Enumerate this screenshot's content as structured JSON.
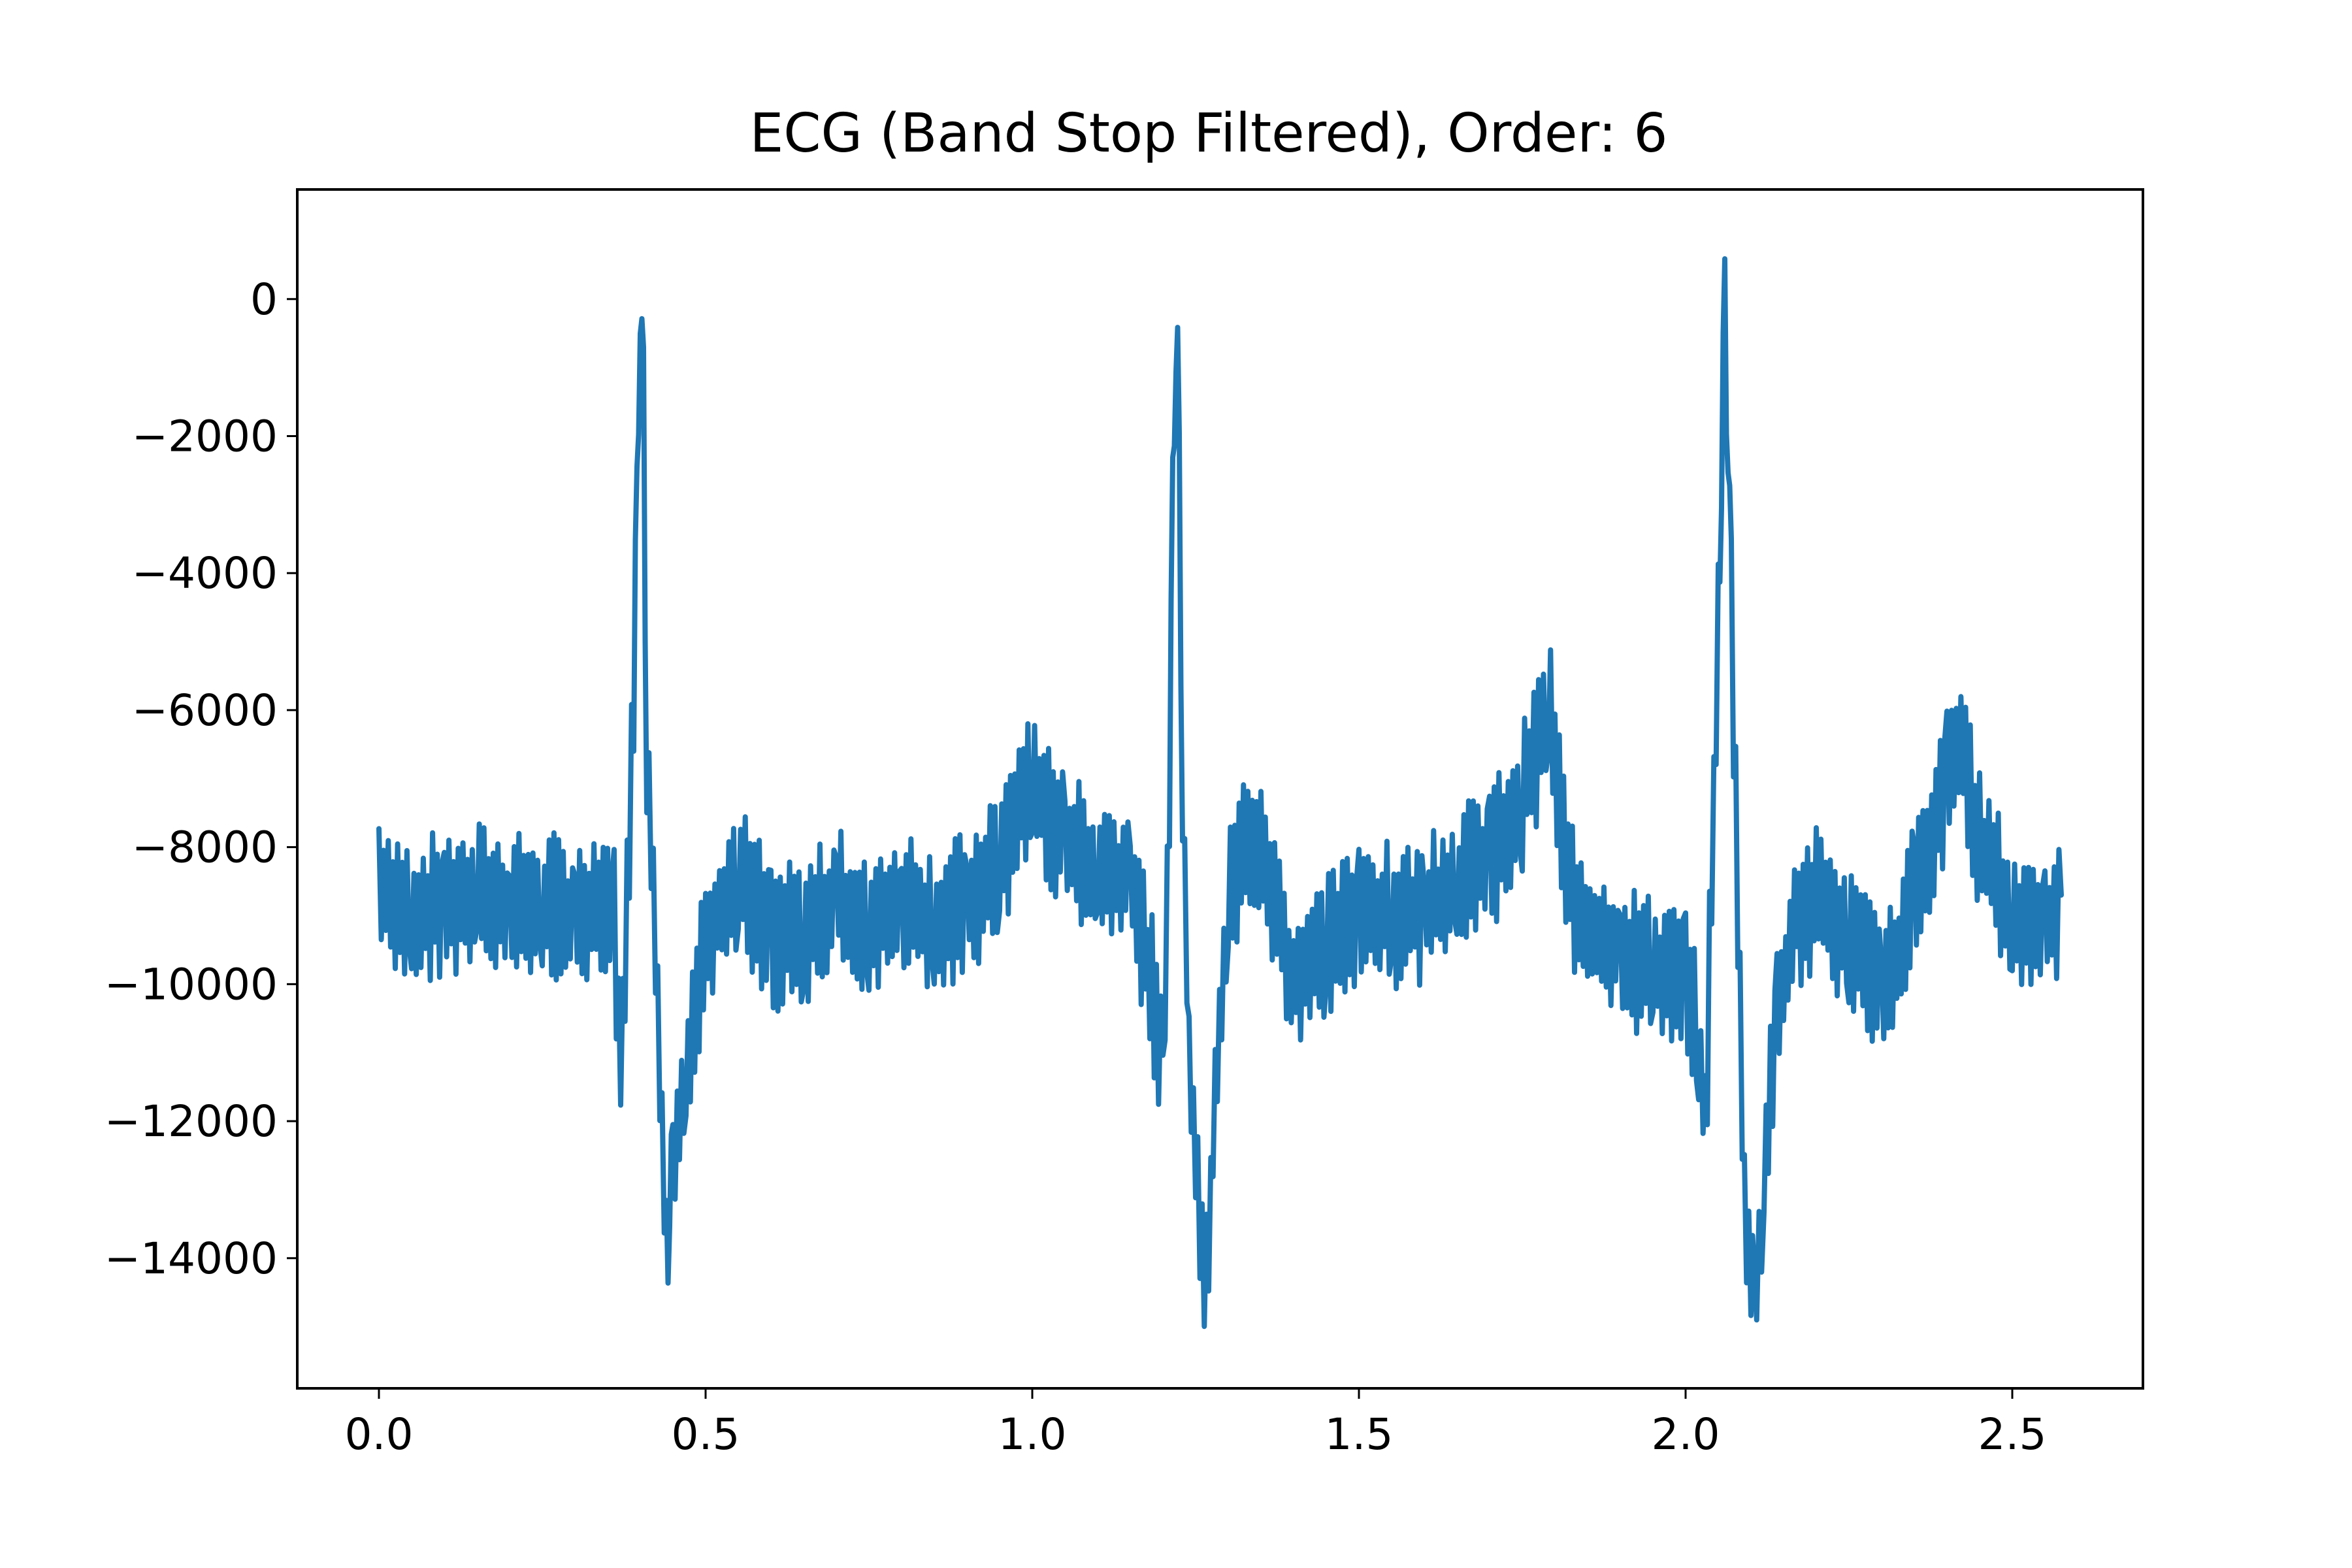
{
  "chart_data": {
    "type": "line",
    "title": "ECG (Band Stop Filtered),  Order: 6",
    "xlabel": "",
    "ylabel": "",
    "xlim": [
      -0.125,
      2.7
    ],
    "ylim": [
      -15900,
      1600
    ],
    "x_ticks": [
      0.0,
      0.5,
      1.0,
      1.5,
      2.0,
      2.5
    ],
    "x_tick_labels": [
      "0.0",
      "0.5",
      "1.0",
      "1.5",
      "2.0",
      "2.5"
    ],
    "y_ticks": [
      0,
      -2000,
      -4000,
      -6000,
      -8000,
      -10000,
      -12000,
      -14000
    ],
    "y_tick_labels": [
      "0",
      "−2000",
      "−4000",
      "−6000",
      "−8000",
      "−10000",
      "−12000",
      "−14000"
    ],
    "grid": false,
    "legend": "none",
    "line_color": "#1f77b4",
    "series": [
      {
        "x": [
          0.0,
          0.05,
          0.1,
          0.15,
          0.2,
          0.25,
          0.3,
          0.34,
          0.36,
          0.37,
          0.38,
          0.39,
          0.395,
          0.4,
          0.405,
          0.41,
          0.42,
          0.43,
          0.44,
          0.445,
          0.45,
          0.47,
          0.5,
          0.55,
          0.6,
          0.65,
          0.7,
          0.75,
          0.8,
          0.85,
          0.9,
          0.95,
          0.98,
          1.0,
          1.05,
          1.1,
          1.15,
          1.18,
          1.2,
          1.21,
          1.215,
          1.22,
          1.225,
          1.23,
          1.24,
          1.25,
          1.26,
          1.27,
          1.28,
          1.3,
          1.33,
          1.36,
          1.4,
          1.45,
          1.5,
          1.55,
          1.6,
          1.65,
          1.7,
          1.75,
          1.775,
          1.79,
          1.82,
          1.85,
          1.9,
          1.95,
          2.0,
          2.02,
          2.03,
          2.04,
          2.05,
          2.055,
          2.06,
          2.065,
          2.07,
          2.08,
          2.09,
          2.1,
          2.105,
          2.12,
          2.14,
          2.17,
          2.2,
          2.25,
          2.3,
          2.33,
          2.35,
          2.38,
          2.4,
          2.425,
          2.45,
          2.5,
          2.55,
          2.575
        ],
        "y": [
          -8500,
          -9000,
          -8800,
          -8700,
          -8900,
          -8800,
          -9000,
          -8700,
          -9000,
          -11300,
          -8800,
          -6000,
          -3000,
          0,
          -1500,
          -6500,
          -8500,
          -11500,
          -13800,
          -13000,
          -12500,
          -11200,
          -9300,
          -8400,
          -9300,
          -9300,
          -8800,
          -9100,
          -8800,
          -9200,
          -8800,
          -8300,
          -7400,
          -7000,
          -8000,
          -8300,
          -8500,
          -9800,
          -11500,
          -7500,
          -3000,
          0,
          -2500,
          -7000,
          -11000,
          -12500,
          -14000,
          -13800,
          -11500,
          -8800,
          -7800,
          -8400,
          -10000,
          -9500,
          -9000,
          -9000,
          -9000,
          -8500,
          -8200,
          -7300,
          -6500,
          -5800,
          -8500,
          -9200,
          -9500,
          -9800,
          -10000,
          -10600,
          -12200,
          -8500,
          -4500,
          -2000,
          0,
          -2000,
          -4500,
          -9000,
          -13000,
          -14300,
          -15000,
          -12800,
          -10500,
          -9000,
          -8800,
          -9300,
          -10200,
          -9500,
          -8500,
          -7800,
          -7000,
          -6500,
          -8000,
          -9000,
          -9200,
          -8700
        ]
      }
    ]
  }
}
